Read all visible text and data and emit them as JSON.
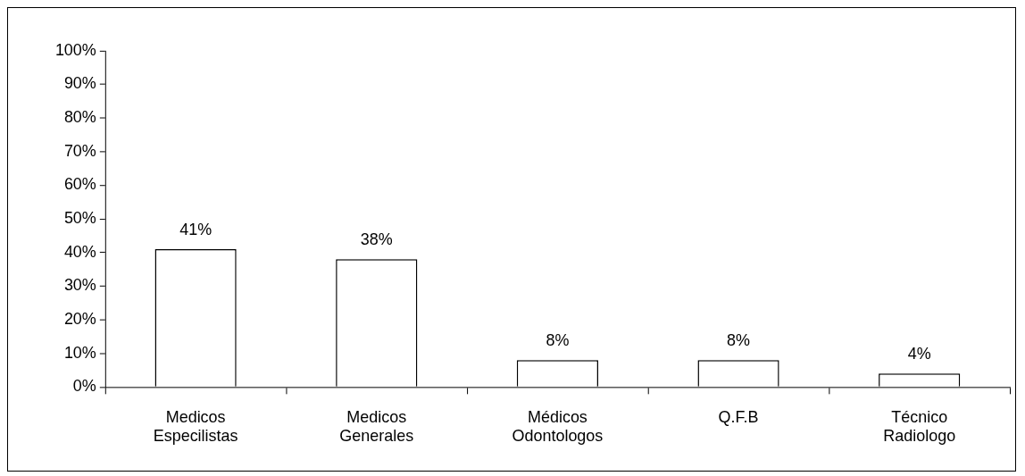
{
  "chart_data": {
    "type": "bar",
    "categories": [
      "Medicos Especilistas",
      "Medicos Generales",
      "Médicos Odontologos",
      "Q.F.B",
      "Técnico Radiologo"
    ],
    "values": [
      41,
      38,
      8,
      8,
      4
    ],
    "color": "#ffffff",
    "ylim": [
      0,
      100
    ],
    "yticks": [
      {
        "value": 0,
        "label": "0%"
      },
      {
        "value": 10,
        "label": "10%"
      },
      {
        "value": 20,
        "label": "20%"
      },
      {
        "value": 30,
        "label": "30%"
      },
      {
        "value": 40,
        "label": "40%"
      },
      {
        "value": 50,
        "label": "50%"
      },
      {
        "value": 60,
        "label": "60%"
      },
      {
        "value": 70,
        "label": "70%"
      },
      {
        "value": 80,
        "label": "80%"
      },
      {
        "value": 90,
        "label": "90%"
      },
      {
        "value": 100,
        "label": "100%"
      }
    ],
    "value_labels": [
      "41%",
      "38%",
      "8%",
      "8%",
      "4%"
    ],
    "grid": false,
    "legend": false
  }
}
